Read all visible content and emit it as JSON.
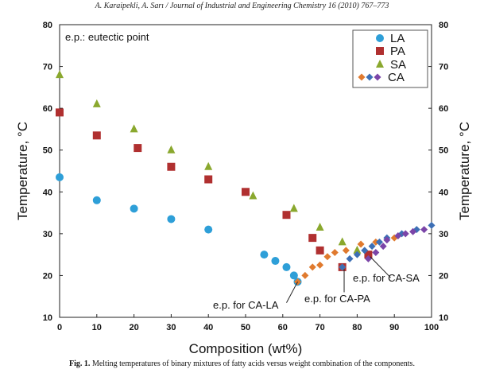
{
  "header": "A. Karaipekli, A. Sarı / Journal of Industrial and Engineering Chemistry 16 (2010) 767–773",
  "caption": {
    "label": "Fig. 1.",
    "text": "Melting temperatures of binary mixtures of fatty acids versus weight combination of the components."
  },
  "chart_data": {
    "type": "scatter",
    "xlabel": "Composition (wt%)",
    "ylabel": "Temperature, °C",
    "ylabel_right": "Temperature, °C",
    "xlim": [
      0,
      100
    ],
    "ylim": [
      10,
      80
    ],
    "xticks": [
      0,
      10,
      20,
      30,
      40,
      50,
      60,
      70,
      80,
      90,
      100
    ],
    "yticks": [
      10,
      20,
      30,
      40,
      50,
      60,
      70,
      80
    ],
    "grid": false,
    "legend_position": "top-right",
    "annotations": {
      "top_note": "e.p.: eutectic point",
      "ep_ca_la": "e.p. for CA-LA",
      "ep_ca_pa": "e.p. for CA-PA",
      "ep_ca_sa": "e.p. for CA-SA"
    },
    "series": [
      {
        "name": "LA",
        "marker": "circle",
        "color": "#2e9fd8",
        "points": [
          [
            0,
            43.5
          ],
          [
            10,
            38
          ],
          [
            20,
            36
          ],
          [
            30,
            33.5
          ],
          [
            40,
            31
          ],
          [
            55,
            25
          ],
          [
            58,
            23.5
          ],
          [
            61,
            22
          ],
          [
            63,
            20
          ],
          [
            64,
            18.5
          ]
        ]
      },
      {
        "name": "PA",
        "marker": "square",
        "color": "#b03030",
        "points": [
          [
            0,
            59
          ],
          [
            10,
            53.5
          ],
          [
            21,
            50.5
          ],
          [
            30,
            46
          ],
          [
            40,
            43
          ],
          [
            50,
            40
          ],
          [
            61,
            34.5
          ],
          [
            68,
            29
          ],
          [
            70,
            26
          ],
          [
            76,
            22
          ],
          [
            83,
            25
          ]
        ]
      },
      {
        "name": "SA",
        "marker": "triangle",
        "color": "#8aa82e",
        "points": [
          [
            0,
            68
          ],
          [
            10,
            61
          ],
          [
            20,
            55
          ],
          [
            30,
            50
          ],
          [
            40,
            46
          ],
          [
            52,
            39
          ],
          [
            63,
            36
          ],
          [
            70,
            31.5
          ],
          [
            76,
            28
          ],
          [
            80,
            26
          ]
        ]
      },
      {
        "name": "CA",
        "marker": "diamond",
        "colors": [
          "#e07a2e",
          "#3d6fb5",
          "#7b45a8"
        ],
        "points": [
          {
            "x": 64,
            "y": 18.5,
            "c": 0
          },
          {
            "x": 66,
            "y": 20,
            "c": 0
          },
          {
            "x": 68,
            "y": 22,
            "c": 0
          },
          {
            "x": 70,
            "y": 22.5,
            "c": 0
          },
          {
            "x": 72,
            "y": 24.5,
            "c": 0
          },
          {
            "x": 74,
            "y": 25.5,
            "c": 0
          },
          {
            "x": 76,
            "y": 22,
            "c": 0
          },
          {
            "x": 77,
            "y": 26,
            "c": 0
          },
          {
            "x": 81,
            "y": 27.5,
            "c": 0
          },
          {
            "x": 85,
            "y": 28,
            "c": 0
          },
          {
            "x": 90,
            "y": 29,
            "c": 0
          },
          {
            "x": 76,
            "y": 22,
            "c": 1
          },
          {
            "x": 78,
            "y": 24,
            "c": 1
          },
          {
            "x": 80,
            "y": 25,
            "c": 1
          },
          {
            "x": 82,
            "y": 26,
            "c": 1
          },
          {
            "x": 84,
            "y": 27,
            "c": 1
          },
          {
            "x": 86,
            "y": 28,
            "c": 1
          },
          {
            "x": 88,
            "y": 29,
            "c": 1
          },
          {
            "x": 92,
            "y": 30,
            "c": 1
          },
          {
            "x": 96,
            "y": 31,
            "c": 1
          },
          {
            "x": 100,
            "y": 32,
            "c": 1
          },
          {
            "x": 83,
            "y": 24,
            "c": 2
          },
          {
            "x": 85,
            "y": 25.5,
            "c": 2
          },
          {
            "x": 87,
            "y": 27,
            "c": 2
          },
          {
            "x": 88,
            "y": 28.5,
            "c": 2
          },
          {
            "x": 91,
            "y": 29.5,
            "c": 2
          },
          {
            "x": 93,
            "y": 30,
            "c": 2
          },
          {
            "x": 95,
            "y": 30.5,
            "c": 2
          },
          {
            "x": 98,
            "y": 31,
            "c": 2
          }
        ]
      }
    ]
  }
}
